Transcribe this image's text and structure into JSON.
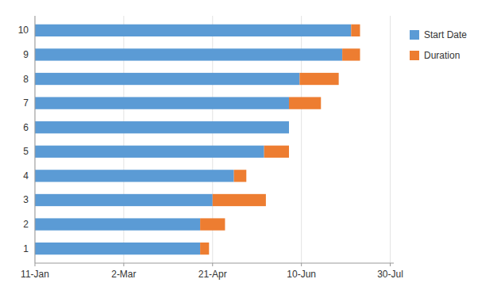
{
  "chart_data": {
    "type": "bar",
    "orientation": "horizontal",
    "stacked": true,
    "categories": [
      "1",
      "2",
      "3",
      "4",
      "5",
      "6",
      "7",
      "8",
      "9",
      "10"
    ],
    "series": [
      {
        "name": "Start Date",
        "color": "#5B9BD5",
        "values": [
          93,
          93,
          100,
          112,
          129,
          143,
          143,
          149,
          173,
          178
        ]
      },
      {
        "name": "Duration",
        "color": "#ED7D31",
        "values": [
          5,
          14,
          30,
          7,
          14,
          0,
          18,
          22,
          10,
          5
        ]
      }
    ],
    "xlim": [
      0,
      202
    ],
    "xticks": [
      {
        "value": 0,
        "label": "11-Jan"
      },
      {
        "value": 50,
        "label": "2-Mar"
      },
      {
        "value": 100,
        "label": "21-Apr"
      },
      {
        "value": 150,
        "label": "10-Jun"
      },
      {
        "value": 200,
        "label": "30-Jul"
      }
    ],
    "grid": true,
    "legend": "right"
  }
}
